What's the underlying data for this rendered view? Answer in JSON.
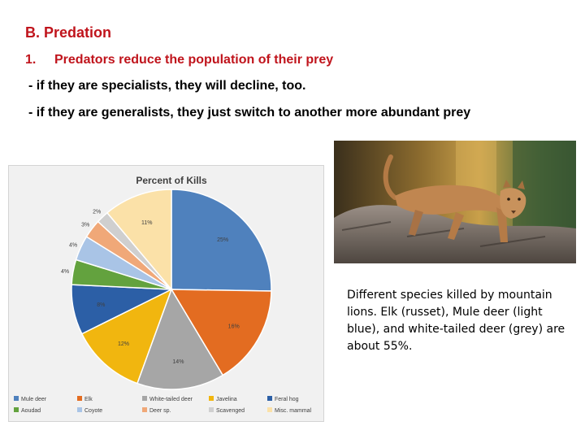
{
  "slide": {
    "heading": "B. Predation",
    "point_number": "1.",
    "point_text": "Predators reduce the population of their prey",
    "sub1": "- if they are specialists, they will decline, too.",
    "sub2": "- if they are generalists, they just switch to another more abundant prey",
    "caption": "Different species killed by mountain lions.  Elk (russet), Mule deer (light blue), and white-tailed deer (grey) are about 55%."
  },
  "chart_data": {
    "type": "pie",
    "title": "Percent of Kills",
    "labels": [
      "Mule deer",
      "Elk",
      "White-tailed deer",
      "Javelina",
      "Feral hog",
      "Aoudad",
      "Coyote",
      "Deer sp.",
      "Scavenged",
      "Misc. mammal"
    ],
    "values": [
      25,
      16,
      14,
      12,
      8,
      4,
      4,
      3,
      2,
      11
    ],
    "value_labels": [
      "25%",
      "16%",
      "14%",
      "12%",
      "8%",
      "4%",
      "4%",
      "3%",
      "2%",
      "11%"
    ],
    "colors": [
      "#4f81bd",
      "#e36c21",
      "#a6a6a6",
      "#f1b60f",
      "#2c5fa6",
      "#63a23e",
      "#a9c4e6",
      "#f0a878",
      "#cfcfcf",
      "#fbe1a8"
    ],
    "legend_position": "bottom"
  }
}
